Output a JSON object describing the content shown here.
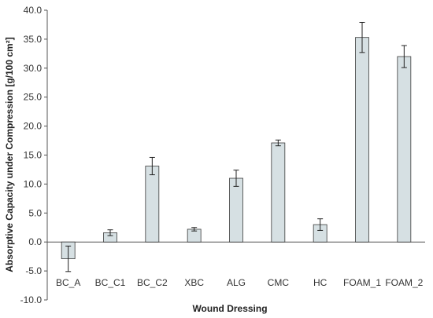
{
  "chart_data": {
    "type": "bar",
    "title": "",
    "xlabel": "Wound Dressing",
    "ylabel": "Absorptive Capacity under Compression [g/100 cm²]",
    "categories": [
      "BC_A",
      "BC_C1",
      "BC_C2",
      "XBC",
      "ALG",
      "CMC",
      "HC",
      "FOAM_1",
      "FOAM_2"
    ],
    "values": [
      -2.9,
      1.6,
      13.1,
      2.2,
      11.0,
      17.1,
      3.0,
      35.3,
      32.0
    ],
    "errors": [
      2.2,
      0.5,
      1.5,
      0.3,
      1.4,
      0.5,
      1.0,
      2.6,
      1.9
    ],
    "ylim": [
      -10.0,
      40.0
    ],
    "yticks": [
      "40.0",
      "35.0",
      "30.0",
      "25.0",
      "20.0",
      "15.0",
      "10.0",
      "5.0",
      "0.0",
      "-5.0",
      "-10.0"
    ],
    "bar_color": "#d6e0e3",
    "bar_stroke": "#3a3a3a",
    "grid": false,
    "legend": "none"
  }
}
